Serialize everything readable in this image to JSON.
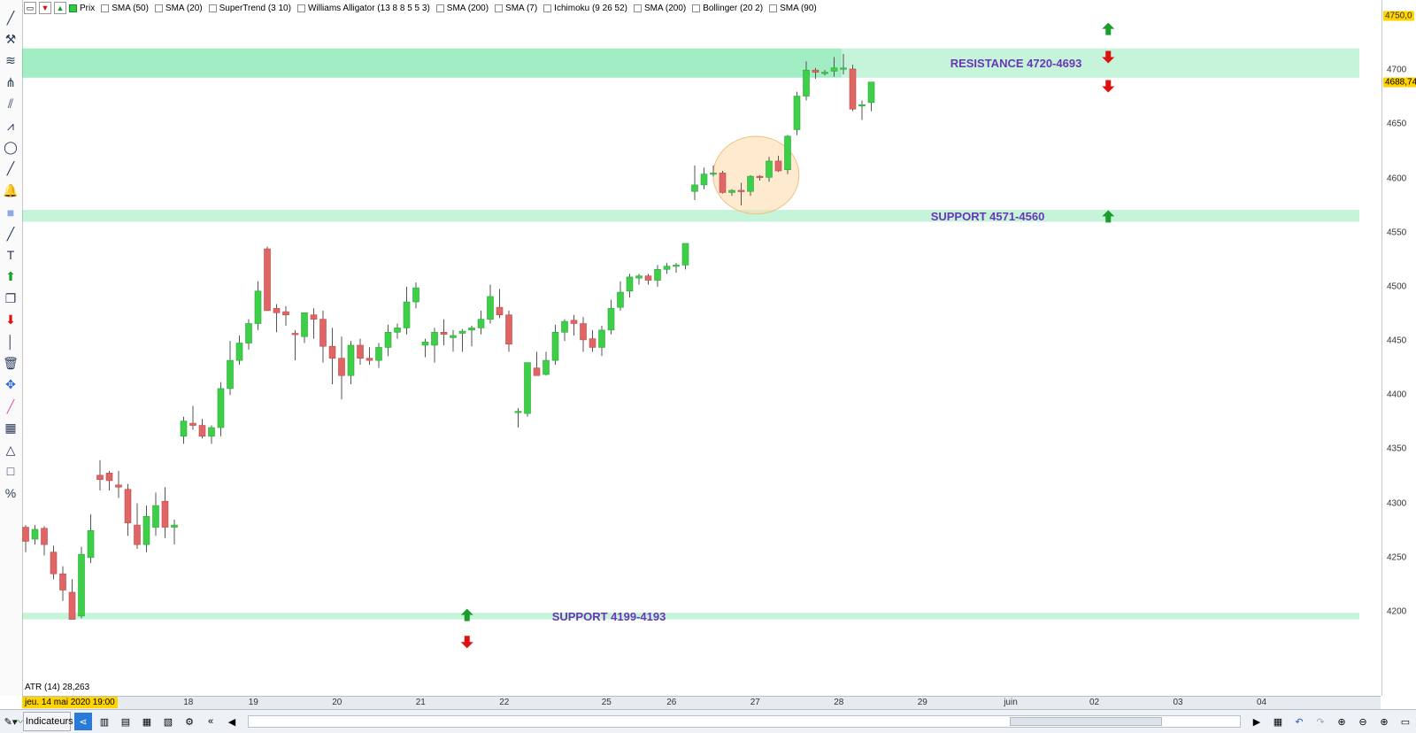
{
  "indicators": [
    {
      "label": "Prix",
      "checked": true
    },
    {
      "label": "SMA (50)",
      "checked": false
    },
    {
      "label": "SMA (20)",
      "checked": false
    },
    {
      "label": "SuperTrend (3 10)",
      "checked": false
    },
    {
      "label": "Williams Alligator (13 8 8 5 5 3)",
      "checked": false
    },
    {
      "label": "SMA (200)",
      "checked": false
    },
    {
      "label": "SMA (7)",
      "checked": false
    },
    {
      "label": "Ichimoku (9 26 52)",
      "checked": false
    },
    {
      "label": "SMA (200)",
      "checked": false
    },
    {
      "label": "Bollinger (20 2)",
      "checked": false
    },
    {
      "label": "SMA (90)",
      "checked": false
    }
  ],
  "left_tools": [
    "pencil-icon",
    "tools-icon",
    "fibonacci-icon",
    "pitchfork-icon",
    "channel-icon",
    "multi-line-icon",
    "ellipse-icon",
    "trendline-icon",
    "alert-bell-icon",
    "rectangle-icon",
    "line-icon",
    "text-icon",
    "buy-arrow-icon",
    "copy-icon",
    "sell-arrow-icon",
    "vertical-line-icon",
    "trash-icon",
    "move-icon",
    "highlighter-icon",
    "grid-icon",
    "measure-icon",
    "blank-icon",
    "percent-icon"
  ],
  "atr_label": "ATR (14) 28,263",
  "cursor_date": "jeu. 14 mai 2020 19:00",
  "date_ticks": [
    "18",
    "19",
    "20",
    "21",
    "22",
    "25",
    "26",
    "27",
    "28",
    "29",
    "juin",
    "02",
    "03",
    "04"
  ],
  "price_ticks": [
    "4750,0",
    "4700",
    "4650",
    "4600",
    "4550",
    "4500",
    "4450",
    "4400",
    "4350",
    "4300",
    "4250",
    "4200"
  ],
  "current_price": "4688,74",
  "bottom": {
    "indicators_label": "Indicateurs"
  },
  "colors": {
    "up": "#3dcf48",
    "down": "#e06666",
    "zone": "#2fd67a",
    "zone_text": "#6a36b8",
    "arrow_up": "#1a9e2a",
    "arrow_down": "#e01010",
    "highlight": "#fbd9a8"
  },
  "chart_data": {
    "type": "candlestick",
    "y_axis": {
      "ylim": [
        4170,
        4760
      ],
      "ticks": [
        4750,
        4700,
        4650,
        4600,
        4550,
        4500,
        4450,
        4400,
        4350,
        4300,
        4250,
        4200
      ]
    },
    "x_axis": {
      "ticks": [
        "18",
        "19",
        "20",
        "21",
        "22",
        "25",
        "26",
        "27",
        "28",
        "29",
        "juin",
        "02",
        "03",
        "04"
      ],
      "tick_index": [
        17.5,
        24.5,
        33.5,
        42.5,
        51.5,
        62.5,
        69.5,
        78.5,
        87.5,
        96.5,
        106,
        115,
        124,
        133
      ]
    },
    "zones": [
      {
        "label": "RESISTANCE 4720-4693",
        "from": 4693,
        "to": 4720,
        "end_index": 87.8
      },
      {
        "label": "SUPPORT 4571-4560",
        "from": 4560,
        "to": 4571
      },
      {
        "label": "SUPPORT 4199-4193",
        "from": 4193,
        "to": 4199
      }
    ],
    "candles": [
      [
        4278,
        4280,
        4255,
        4265
      ],
      [
        4267,
        4280,
        4262,
        4276
      ],
      [
        4277,
        4279,
        4252,
        4262
      ],
      [
        4255,
        4261,
        4230,
        4235
      ],
      [
        4235,
        4242,
        4210,
        4220
      ],
      [
        4218,
        4230,
        4195,
        4193
      ],
      [
        4196,
        4260,
        4194,
        4253
      ],
      [
        4250,
        4290,
        4245,
        4275
      ],
      [
        4326,
        4340,
        4312,
        4322
      ],
      [
        4328,
        4330,
        4312,
        4321
      ],
      [
        4317,
        4330,
        4305,
        4315
      ],
      [
        4313,
        4318,
        4270,
        4282
      ],
      [
        4280,
        4300,
        4258,
        4262
      ],
      [
        4262,
        4298,
        4255,
        4288
      ],
      [
        4278,
        4310,
        4270,
        4298
      ],
      [
        4302,
        4315,
        4268,
        4278
      ],
      [
        4278,
        4285,
        4262,
        4280
      ],
      [
        4362,
        4380,
        4355,
        4376
      ],
      [
        4374,
        4390,
        4368,
        4372
      ],
      [
        4372,
        4378,
        4360,
        4362
      ],
      [
        4362,
        4372,
        4355,
        4370
      ],
      [
        4370,
        4412,
        4362,
        4406
      ],
      [
        4406,
        4450,
        4400,
        4432
      ],
      [
        4432,
        4455,
        4428,
        4448
      ],
      [
        4448,
        4470,
        4442,
        4466
      ],
      [
        4466,
        4505,
        4460,
        4496
      ],
      [
        4535,
        4537,
        4478,
        4478
      ],
      [
        4480,
        4484,
        4458,
        4476
      ],
      [
        4477,
        4482,
        4464,
        4474
      ],
      [
        4457,
        4460,
        4432,
        4456
      ],
      [
        4454,
        4476,
        4448,
        4476
      ],
      [
        4474,
        4480,
        4452,
        4470
      ],
      [
        4470,
        4478,
        4430,
        4445
      ],
      [
        4445,
        4462,
        4410,
        4434
      ],
      [
        4434,
        4454,
        4396,
        4418
      ],
      [
        4418,
        4450,
        4410,
        4446
      ],
      [
        4446,
        4452,
        4428,
        4434
      ],
      [
        4434,
        4444,
        4428,
        4432
      ],
      [
        4432,
        4448,
        4425,
        4444
      ],
      [
        4444,
        4465,
        4436,
        4458
      ],
      [
        4458,
        4466,
        4452,
        4462
      ],
      [
        4462,
        4500,
        4456,
        4486
      ],
      [
        4486,
        4504,
        4480,
        4499
      ],
      [
        4446,
        4452,
        4435,
        4449
      ],
      [
        4446,
        4462,
        4430,
        4458
      ],
      [
        4458,
        4470,
        4446,
        4456
      ],
      [
        4453,
        4460,
        4440,
        4455
      ],
      [
        4457,
        4461,
        4440,
        4459
      ],
      [
        4460,
        4464,
        4445,
        4462
      ],
      [
        4462,
        4478,
        4456,
        4470
      ],
      [
        4470,
        4502,
        4466,
        4491
      ],
      [
        4481,
        4498,
        4471,
        4474
      ],
      [
        4474,
        4478,
        4440,
        4447
      ],
      [
        4384,
        4388,
        4370,
        4385
      ],
      [
        4383,
        4430,
        4380,
        4430
      ],
      [
        4425,
        4440,
        4418,
        4418
      ],
      [
        4419,
        4440,
        4418,
        4432
      ],
      [
        4432,
        4465,
        4428,
        4458
      ],
      [
        4458,
        4470,
        4450,
        4468
      ],
      [
        4469,
        4474,
        4455,
        4466
      ],
      [
        4466,
        4472,
        4440,
        4451
      ],
      [
        4452,
        4460,
        4440,
        4444
      ],
      [
        4444,
        4464,
        4436,
        4460
      ],
      [
        4460,
        4488,
        4456,
        4480
      ],
      [
        4481,
        4505,
        4478,
        4495
      ],
      [
        4496,
        4512,
        4490,
        4509
      ],
      [
        4508,
        4512,
        4502,
        4510
      ],
      [
        4510,
        4512,
        4502,
        4506
      ],
      [
        4506,
        4520,
        4500,
        4516
      ],
      [
        4516,
        4522,
        4512,
        4519
      ],
      [
        4520,
        4522,
        4513,
        4520
      ],
      [
        4520,
        4540,
        4516,
        4540
      ],
      [
        4588,
        4612,
        4580,
        4594
      ],
      [
        4594,
        4610,
        4590,
        4604
      ],
      [
        4604,
        4612,
        4602,
        4605
      ],
      [
        4605,
        4607,
        4586,
        4587
      ],
      [
        4587,
        4590,
        4584,
        4589
      ],
      [
        4589,
        4596,
        4575,
        4588
      ],
      [
        4588,
        4603,
        4584,
        4602
      ],
      [
        4602,
        4603,
        4598,
        4601
      ],
      [
        4601,
        4620,
        4597,
        4616
      ],
      [
        4616,
        4621,
        4606,
        4607
      ],
      [
        4608,
        4640,
        4604,
        4639
      ],
      [
        4645,
        4680,
        4640,
        4676
      ],
      [
        4676,
        4708,
        4672,
        4700
      ],
      [
        4700,
        4702,
        4692,
        4698
      ],
      [
        4698,
        4700,
        4695,
        4698
      ],
      [
        4699,
        4712,
        4694,
        4702
      ],
      [
        4702,
        4715,
        4696,
        4702
      ],
      [
        4701,
        4705,
        4662,
        4664
      ],
      [
        4668,
        4672,
        4654,
        4668
      ],
      [
        4670,
        4689,
        4662,
        4689
      ]
    ],
    "signals": [
      {
        "dir": "up",
        "x_index": 116.5,
        "y": 4738
      },
      {
        "dir": "down",
        "x_index": 116.5,
        "y": 4712
      },
      {
        "dir": "down",
        "x_index": 116.5,
        "y": 4685
      },
      {
        "dir": "up",
        "x_index": 116.5,
        "y": 4565
      },
      {
        "dir": "up",
        "x_index": 47.5,
        "y": 4197
      },
      {
        "dir": "down",
        "x_index": 47.5,
        "y": 4172
      }
    ],
    "highlight": {
      "x_index": 78.6,
      "y": 4603,
      "rx_index": 4.4,
      "ry": 36
    }
  }
}
